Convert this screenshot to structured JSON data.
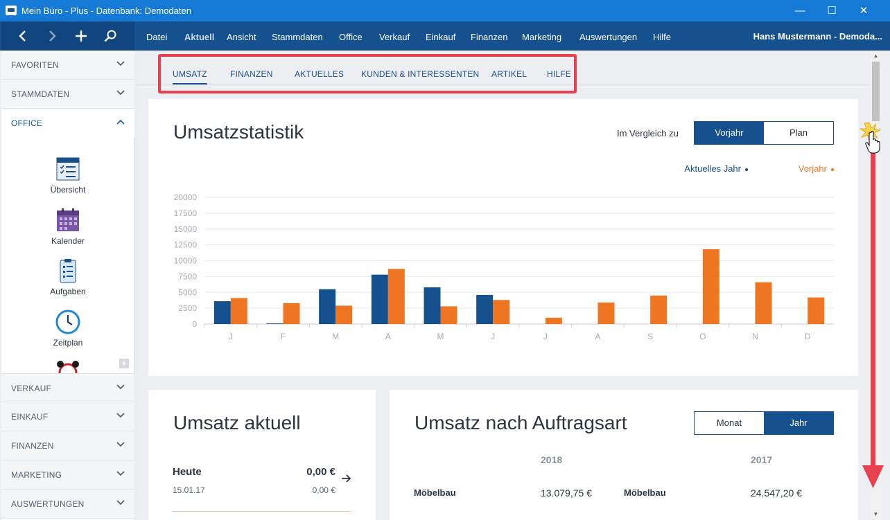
{
  "window": {
    "title": "Mein Büro - Plus - Datenbank: Demodaten",
    "minimize": "—",
    "maximize": "☐",
    "close": "✕"
  },
  "menubar": {
    "items": [
      "Datei",
      "Aktuell",
      "Ansicht",
      "Stammdaten",
      "Office",
      "Verkauf",
      "Einkauf",
      "Finanzen",
      "Marketing",
      "Auswertungen",
      "Hilfe"
    ],
    "user": "Hans Mustermann - Demoda..."
  },
  "sidebar": {
    "sections_top": [
      "FAVORITEN",
      "STAMMDATEN"
    ],
    "active_section": "OFFICE",
    "tools": [
      {
        "label": "Übersicht",
        "icon": "overview-icon"
      },
      {
        "label": "Kalender",
        "icon": "calendar-icon"
      },
      {
        "label": "Aufgaben",
        "icon": "tasks-icon"
      },
      {
        "label": "Zeitplan",
        "icon": "clock-icon"
      }
    ],
    "sections_bottom": [
      "VERKAUF",
      "EINKAUF",
      "FINANZEN",
      "MARKETING",
      "AUSWERTUNGEN"
    ]
  },
  "subnav": {
    "tabs": [
      "UMSATZ",
      "FINANZEN",
      "AKTUELLES",
      "KUNDEN & INTERESSENTEN",
      "ARTIKEL",
      "HILFE"
    ],
    "active": "UMSATZ"
  },
  "stats": {
    "title": "Umsatzstatistik",
    "compare_label": "Im Vergleich zu",
    "toggle": [
      "Vorjahr",
      "Plan"
    ],
    "toggle_active": "Vorjahr",
    "legend_current": "Aktuelles Jahr",
    "legend_prev": "Vorjahr"
  },
  "chart_data": {
    "type": "bar",
    "categories": [
      "J",
      "F",
      "M",
      "A",
      "M",
      "J",
      "J",
      "A",
      "S",
      "O",
      "N",
      "D"
    ],
    "series": [
      {
        "name": "Aktuelles Jahr",
        "color": "#15508f",
        "values": [
          3600,
          100,
          5500,
          7800,
          5800,
          4600,
          0,
          0,
          0,
          0,
          0,
          0
        ]
      },
      {
        "name": "Vorjahr",
        "color": "#ee7623",
        "values": [
          4100,
          3300,
          2900,
          8700,
          2800,
          3800,
          1000,
          3400,
          4500,
          11800,
          6600,
          4200
        ]
      }
    ],
    "yticks": [
      "20000",
      "17500",
      "15000",
      "12500",
      "10000",
      "7500",
      "5000",
      "2500",
      "0"
    ],
    "ylim": [
      0,
      20000
    ],
    "grid": true,
    "legend_position": "top-right"
  },
  "aktuell": {
    "title": "Umsatz aktuell",
    "today_label": "Heute",
    "today_value": "0,00 €",
    "date": "15.01.17",
    "prev_value": "0,00 €"
  },
  "auftragsart": {
    "title": "Umsatz nach Auftragsart",
    "toggle": [
      "Monat",
      "Jahr"
    ],
    "toggle_active": "Jahr",
    "year_a": "2018",
    "year_b": "2017",
    "row_label_a": "Möbelbau",
    "row_value_a": "13.079,75 €",
    "row_label_b": "Möbelbau",
    "row_value_b": "24.547,20 €"
  }
}
